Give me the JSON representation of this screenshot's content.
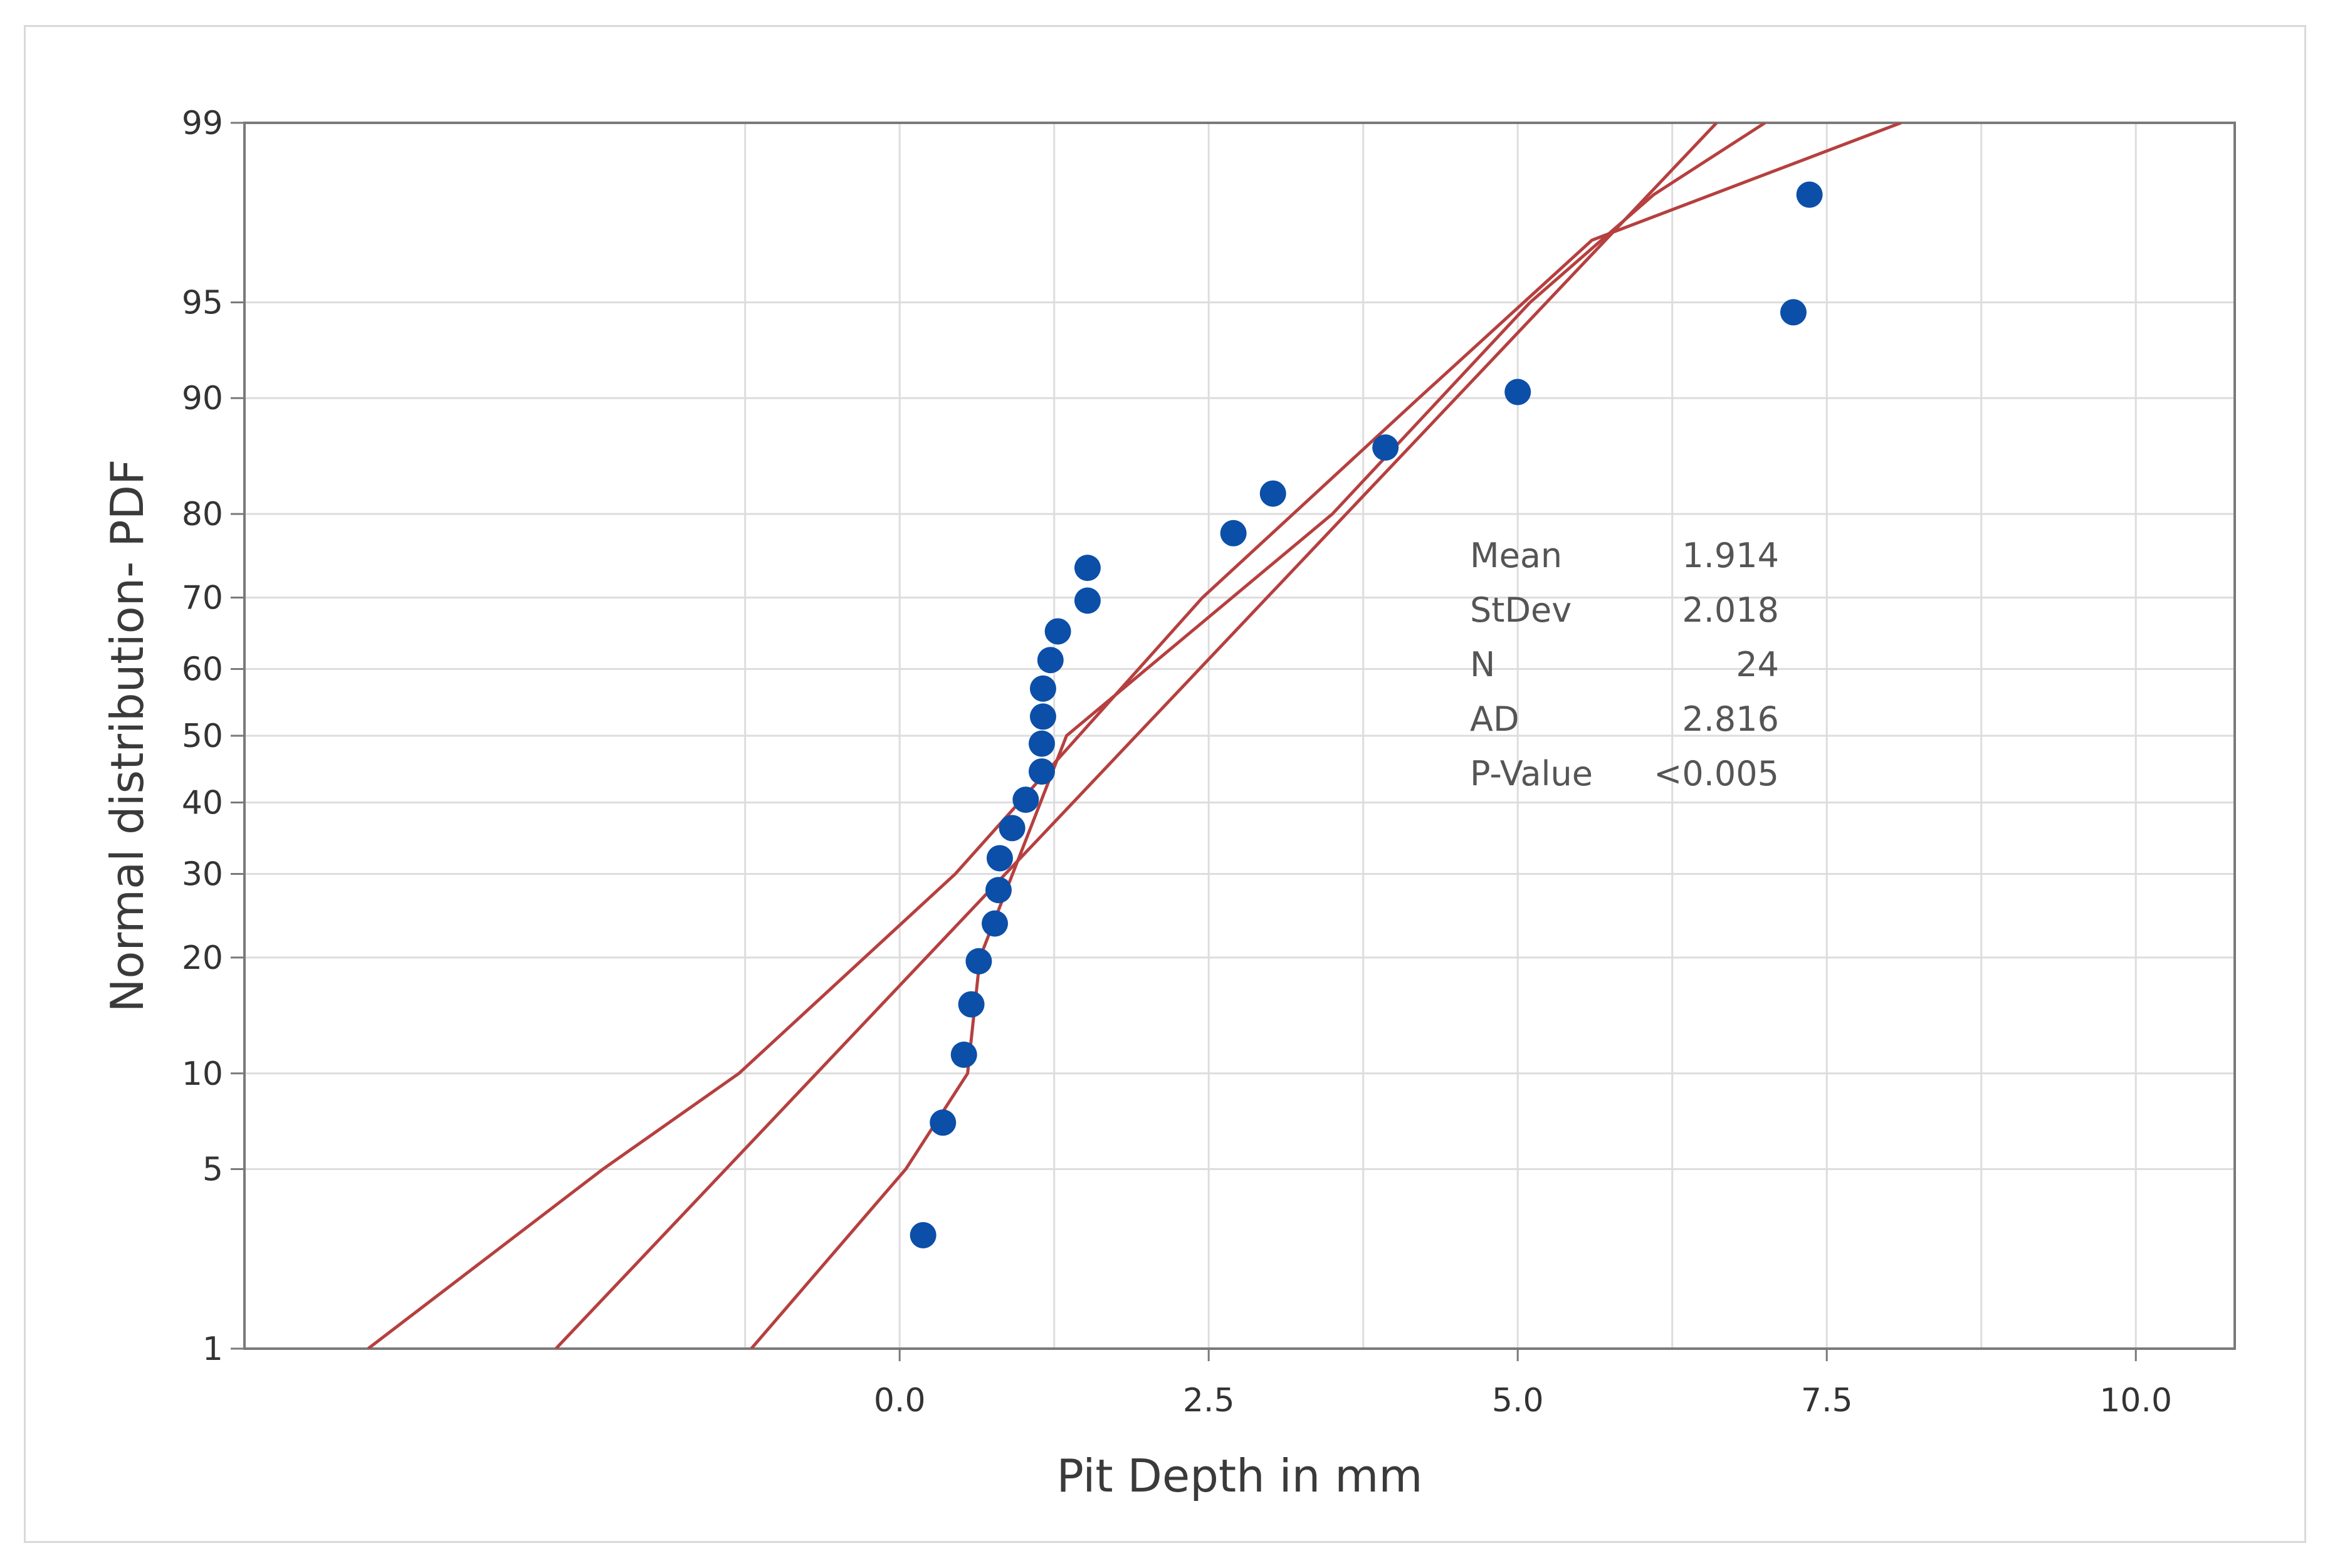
{
  "chart_data": {
    "type": "scatter",
    "subtype": "normal-probability-plot",
    "xlabel": "Pit Depth in mm",
    "ylabel": "Normal distribution- PDF",
    "x_ticks": [
      0.0,
      2.5,
      5.0,
      7.5,
      10.0
    ],
    "x_tick_labels": [
      "0.0",
      "2.5",
      "5.0",
      "7.5",
      "10.0"
    ],
    "x_gridlines": [
      -1.25,
      0.0,
      1.25,
      2.5,
      3.75,
      5.0,
      6.25,
      7.5,
      8.75,
      10.0
    ],
    "xlim": [
      -5.3,
      10.8
    ],
    "y_scale": "normal-probability",
    "ylim": [
      1,
      99
    ],
    "y_ticks": [
      1,
      5,
      10,
      20,
      30,
      40,
      50,
      60,
      70,
      80,
      90,
      95,
      99
    ],
    "y_tick_labels": [
      "1",
      "5",
      "10",
      "20",
      "30",
      "40",
      "50",
      "60",
      "70",
      "80",
      "90",
      "95",
      "99"
    ],
    "grid": true,
    "colors": {
      "points": "#0b4fa8",
      "lines": "#b5403f",
      "grid": "#dddddd",
      "axes": "#7a7a7a"
    },
    "series": [
      {
        "values": [
          [
            0.19,
            2.9
          ],
          [
            0.35,
            7.1
          ],
          [
            0.52,
            11.3
          ],
          [
            0.58,
            15.4
          ],
          [
            0.64,
            19.6
          ],
          [
            0.77,
            23.8
          ],
          [
            0.8,
            27.9
          ],
          [
            0.81,
            32.1
          ],
          [
            0.91,
            36.3
          ],
          [
            1.02,
            40.4
          ],
          [
            1.15,
            44.6
          ],
          [
            1.15,
            48.8
          ],
          [
            1.16,
            52.9
          ],
          [
            1.16,
            57.1
          ],
          [
            1.22,
            61.3
          ],
          [
            1.28,
            65.4
          ],
          [
            1.52,
            69.6
          ],
          [
            1.52,
            73.8
          ],
          [
            2.7,
            77.9
          ],
          [
            3.02,
            82.1
          ],
          [
            3.93,
            86.3
          ],
          [
            5.0,
            90.4
          ],
          [
            7.23,
            94.6
          ],
          [
            7.36,
            98.0
          ]
        ]
      }
    ],
    "fit_line": {
      "mean": 1.914,
      "sd": 2.018
    },
    "confidence_bands": {
      "lower": [
        [
          -4.3,
          1
        ],
        [
          -2.4,
          5
        ],
        [
          -1.3,
          10
        ],
        [
          0.45,
          30
        ],
        [
          1.45,
          50
        ],
        [
          2.45,
          70
        ],
        [
          4.2,
          90
        ],
        [
          5.6,
          97
        ],
        [
          8.1,
          99
        ]
      ],
      "upper": [
        [
          -1.2,
          1
        ],
        [
          0.05,
          5
        ],
        [
          0.55,
          10
        ],
        [
          0.65,
          20
        ],
        [
          1.35,
          50
        ],
        [
          3.5,
          80
        ],
        [
          5.1,
          95
        ],
        [
          6.1,
          98
        ],
        [
          7.0,
          99
        ]
      ]
    },
    "stats": [
      {
        "label": "Mean",
        "value": "1.914"
      },
      {
        "label": "StDev",
        "value": "2.018"
      },
      {
        "label": "N",
        "value": "24"
      },
      {
        "label": "AD",
        "value": "2.816"
      },
      {
        "label": "P-Value",
        "value": "<0.005"
      }
    ]
  }
}
